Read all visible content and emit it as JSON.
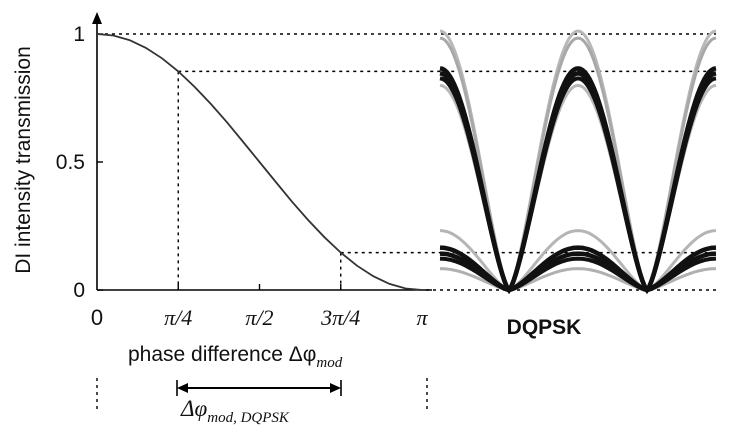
{
  "chart_data": {
    "type": "line",
    "ylabel": "DI intensity transmission",
    "xlabel": "phase difference Δφ",
    "xlabel_sub": "mod",
    "xlim": [
      0,
      3.14159
    ],
    "ylim": [
      0,
      1
    ],
    "x_ticks": [
      {
        "value": 0,
        "label": "0"
      },
      {
        "value": 0.7854,
        "label": "π/4"
      },
      {
        "value": 1.5708,
        "label": "π/2"
      },
      {
        "value": 2.3562,
        "label": "3π/4"
      },
      {
        "value": 3.14159,
        "label": "π"
      }
    ],
    "y_ticks": [
      {
        "value": 0,
        "label": "0"
      },
      {
        "value": 0.5,
        "label": "0.5"
      },
      {
        "value": 1,
        "label": "1"
      }
    ],
    "series": [
      {
        "x": [
          0,
          0.1571,
          0.3142,
          0.4712,
          0.6283,
          0.7854,
          0.9425,
          1.0996,
          1.2566,
          1.4137,
          1.5708,
          1.7279,
          1.885,
          2.042,
          2.1991,
          2.3562,
          2.5133,
          2.6704,
          2.8274,
          2.9845,
          3.1416
        ],
        "y": [
          1.0,
          0.994,
          0.976,
          0.946,
          0.905,
          0.854,
          0.794,
          0.727,
          0.655,
          0.578,
          0.5,
          0.422,
          0.345,
          0.273,
          0.206,
          0.146,
          0.095,
          0.054,
          0.024,
          0.006,
          0.0
        ]
      }
    ],
    "reference_levels": [
      {
        "x": 0.7854,
        "y": 0.854
      },
      {
        "x": 2.3562,
        "y": 0.146
      }
    ],
    "grid": false
  },
  "inset": {
    "label": "DQPSK"
  },
  "bracket": {
    "label_main": "Δφ",
    "label_sub": "mod, DQPSK"
  }
}
